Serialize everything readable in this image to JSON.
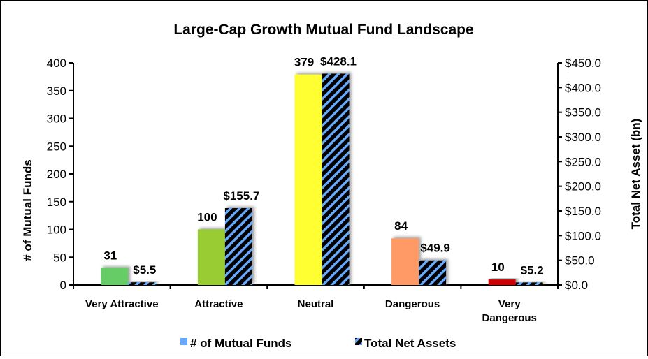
{
  "chart_data": {
    "type": "bar",
    "title": "Large-Cap Growth Mutual Fund Landscape",
    "categories": [
      "Very Attractive",
      "Attractive",
      "Neutral",
      "Dangerous",
      "Very Dangerous"
    ],
    "category_lines": [
      [
        "Very Attractive"
      ],
      [
        "Attractive"
      ],
      [
        "Neutral"
      ],
      [
        "Dangerous"
      ],
      [
        "Very",
        "Dangerous"
      ]
    ],
    "series": [
      {
        "name": "# of Mutual Funds",
        "axis": "left",
        "values": [
          31,
          100,
          379,
          84,
          10
        ],
        "labels": [
          "31",
          "100",
          "379",
          "84",
          "10"
        ],
        "colors": [
          "#66cc66",
          "#99cc33",
          "#ffff33",
          "#ff9966",
          "#cc0000"
        ],
        "legend_color": "#66aaff"
      },
      {
        "name": "Total Net Assets",
        "axis": "right",
        "values": [
          5.5,
          155.7,
          428.1,
          49.9,
          5.2
        ],
        "labels": [
          "$5.5",
          "$155.7",
          "$428.1",
          "$49.9",
          "$5.2"
        ],
        "pattern": "hatch",
        "colors": [
          "#000000",
          "#66aaff"
        ]
      }
    ],
    "ylabel": "# of Mutual Funds",
    "y2label": "Total Net Asset (bn)",
    "ylim": [
      0,
      400
    ],
    "y2lim": [
      0,
      450
    ],
    "yticks": [
      "0",
      "50",
      "100",
      "150",
      "200",
      "250",
      "300",
      "350",
      "400"
    ],
    "y2ticks": [
      "$0.0",
      "$50.0",
      "$100.0",
      "$150.0",
      "$200.0",
      "$250.0",
      "$300.0",
      "$350.0",
      "$400.0",
      "$450.0"
    ],
    "grid": false,
    "legend_position": "bottom"
  }
}
